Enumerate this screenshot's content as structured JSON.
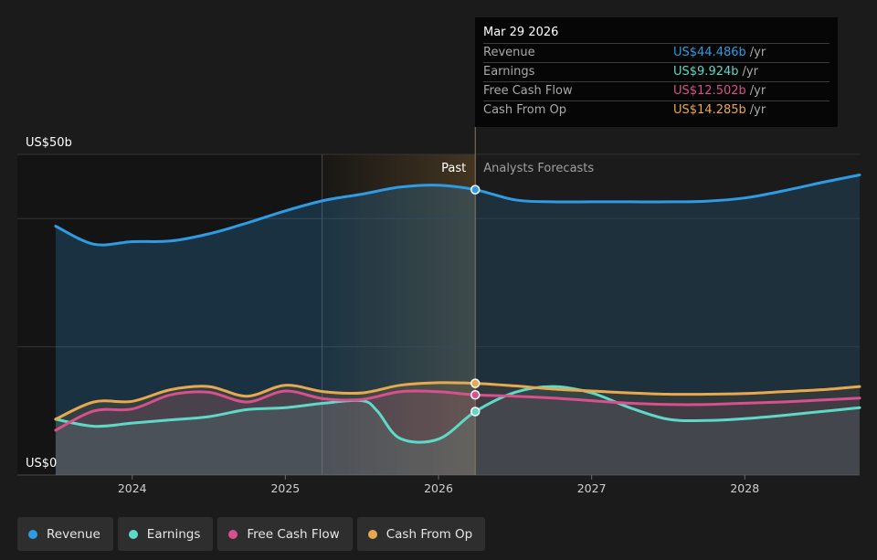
{
  "tooltip": {
    "date": "Mar 29 2026",
    "unit": "/yr",
    "rows": [
      {
        "label": "Revenue",
        "value": "US$44.486b"
      },
      {
        "label": "Earnings",
        "value": "US$9.924b"
      },
      {
        "label": "Free Cash Flow",
        "value": "US$12.502b"
      },
      {
        "label": "Cash From Op",
        "value": "US$14.285b"
      }
    ]
  },
  "labels": {
    "past": "Past",
    "forecast": "Analysts Forecasts"
  },
  "legend": [
    "Revenue",
    "Earnings",
    "Free Cash Flow",
    "Cash From Op"
  ],
  "colors": {
    "Revenue": "#2f9be3",
    "Earnings": "#5fd8c8",
    "Free Cash Flow": "#d9508c",
    "Cash From Op": "#e8a94e"
  },
  "chart_data": {
    "type": "line",
    "x_unit": "year (decimal)",
    "xlim": [
      2023.25,
      2028.75
    ],
    "ylim": [
      0,
      50
    ],
    "y_unit": "US$ billions",
    "y_tick_labels": [
      {
        "value": 50,
        "label": "US$50b"
      },
      {
        "value": 0,
        "label": "US$0"
      }
    ],
    "x_ticks": [
      2024,
      2025,
      2026,
      2027,
      2028
    ],
    "grid": true,
    "past_forecast_divider": 2026.24,
    "highlight_range": [
      2025.24,
      2026.24
    ],
    "series": [
      {
        "name": "Revenue",
        "x": [
          2023.5,
          2023.75,
          2024.0,
          2024.25,
          2024.5,
          2024.75,
          2025.0,
          2025.25,
          2025.5,
          2025.75,
          2026.0,
          2026.24,
          2026.5,
          2026.75,
          2027.0,
          2027.25,
          2027.5,
          2027.75,
          2028.0,
          2028.25,
          2028.5,
          2028.75
        ],
        "y": [
          38.8,
          36.0,
          36.4,
          36.5,
          37.6,
          39.3,
          41.2,
          42.8,
          43.8,
          44.9,
          45.2,
          44.5,
          42.9,
          42.6,
          42.6,
          42.6,
          42.6,
          42.7,
          43.2,
          44.3,
          45.6,
          46.8
        ]
      },
      {
        "name": "Earnings",
        "x": [
          2023.5,
          2023.75,
          2024.0,
          2024.25,
          2024.5,
          2024.75,
          2025.0,
          2025.25,
          2025.5,
          2025.6,
          2025.75,
          2026.0,
          2026.24,
          2026.5,
          2026.75,
          2027.0,
          2027.25,
          2027.5,
          2027.75,
          2028.0,
          2028.25,
          2028.5,
          2028.75
        ],
        "y": [
          8.7,
          7.6,
          8.1,
          8.6,
          9.1,
          10.2,
          10.5,
          11.2,
          11.6,
          10.0,
          5.7,
          5.6,
          9.9,
          12.9,
          13.8,
          12.8,
          10.5,
          8.7,
          8.5,
          8.8,
          9.3,
          9.9,
          10.5
        ]
      },
      {
        "name": "Free Cash Flow",
        "x": [
          2023.5,
          2023.75,
          2024.0,
          2024.25,
          2024.5,
          2024.75,
          2025.0,
          2025.25,
          2025.5,
          2025.75,
          2026.0,
          2026.24,
          2026.5,
          2026.75,
          2027.0,
          2027.25,
          2027.5,
          2027.75,
          2028.0,
          2028.25,
          2028.5,
          2028.75
        ],
        "y": [
          7.0,
          10.0,
          10.3,
          12.5,
          12.9,
          11.4,
          13.1,
          11.9,
          11.8,
          13.0,
          13.0,
          12.5,
          12.3,
          12.0,
          11.6,
          11.2,
          11.0,
          11.0,
          11.2,
          11.4,
          11.7,
          12.0
        ]
      },
      {
        "name": "Cash From Op",
        "x": [
          2023.5,
          2023.75,
          2024.0,
          2024.25,
          2024.5,
          2024.75,
          2025.0,
          2025.25,
          2025.5,
          2025.75,
          2026.0,
          2026.24,
          2026.5,
          2026.75,
          2027.0,
          2027.25,
          2027.5,
          2027.75,
          2028.0,
          2028.25,
          2028.5,
          2028.75
        ],
        "y": [
          8.7,
          11.4,
          11.5,
          13.3,
          13.8,
          12.3,
          14.0,
          13.0,
          12.8,
          14.0,
          14.4,
          14.3,
          13.9,
          13.4,
          13.1,
          12.8,
          12.6,
          12.6,
          12.7,
          13.0,
          13.3,
          13.8
        ]
      }
    ]
  }
}
